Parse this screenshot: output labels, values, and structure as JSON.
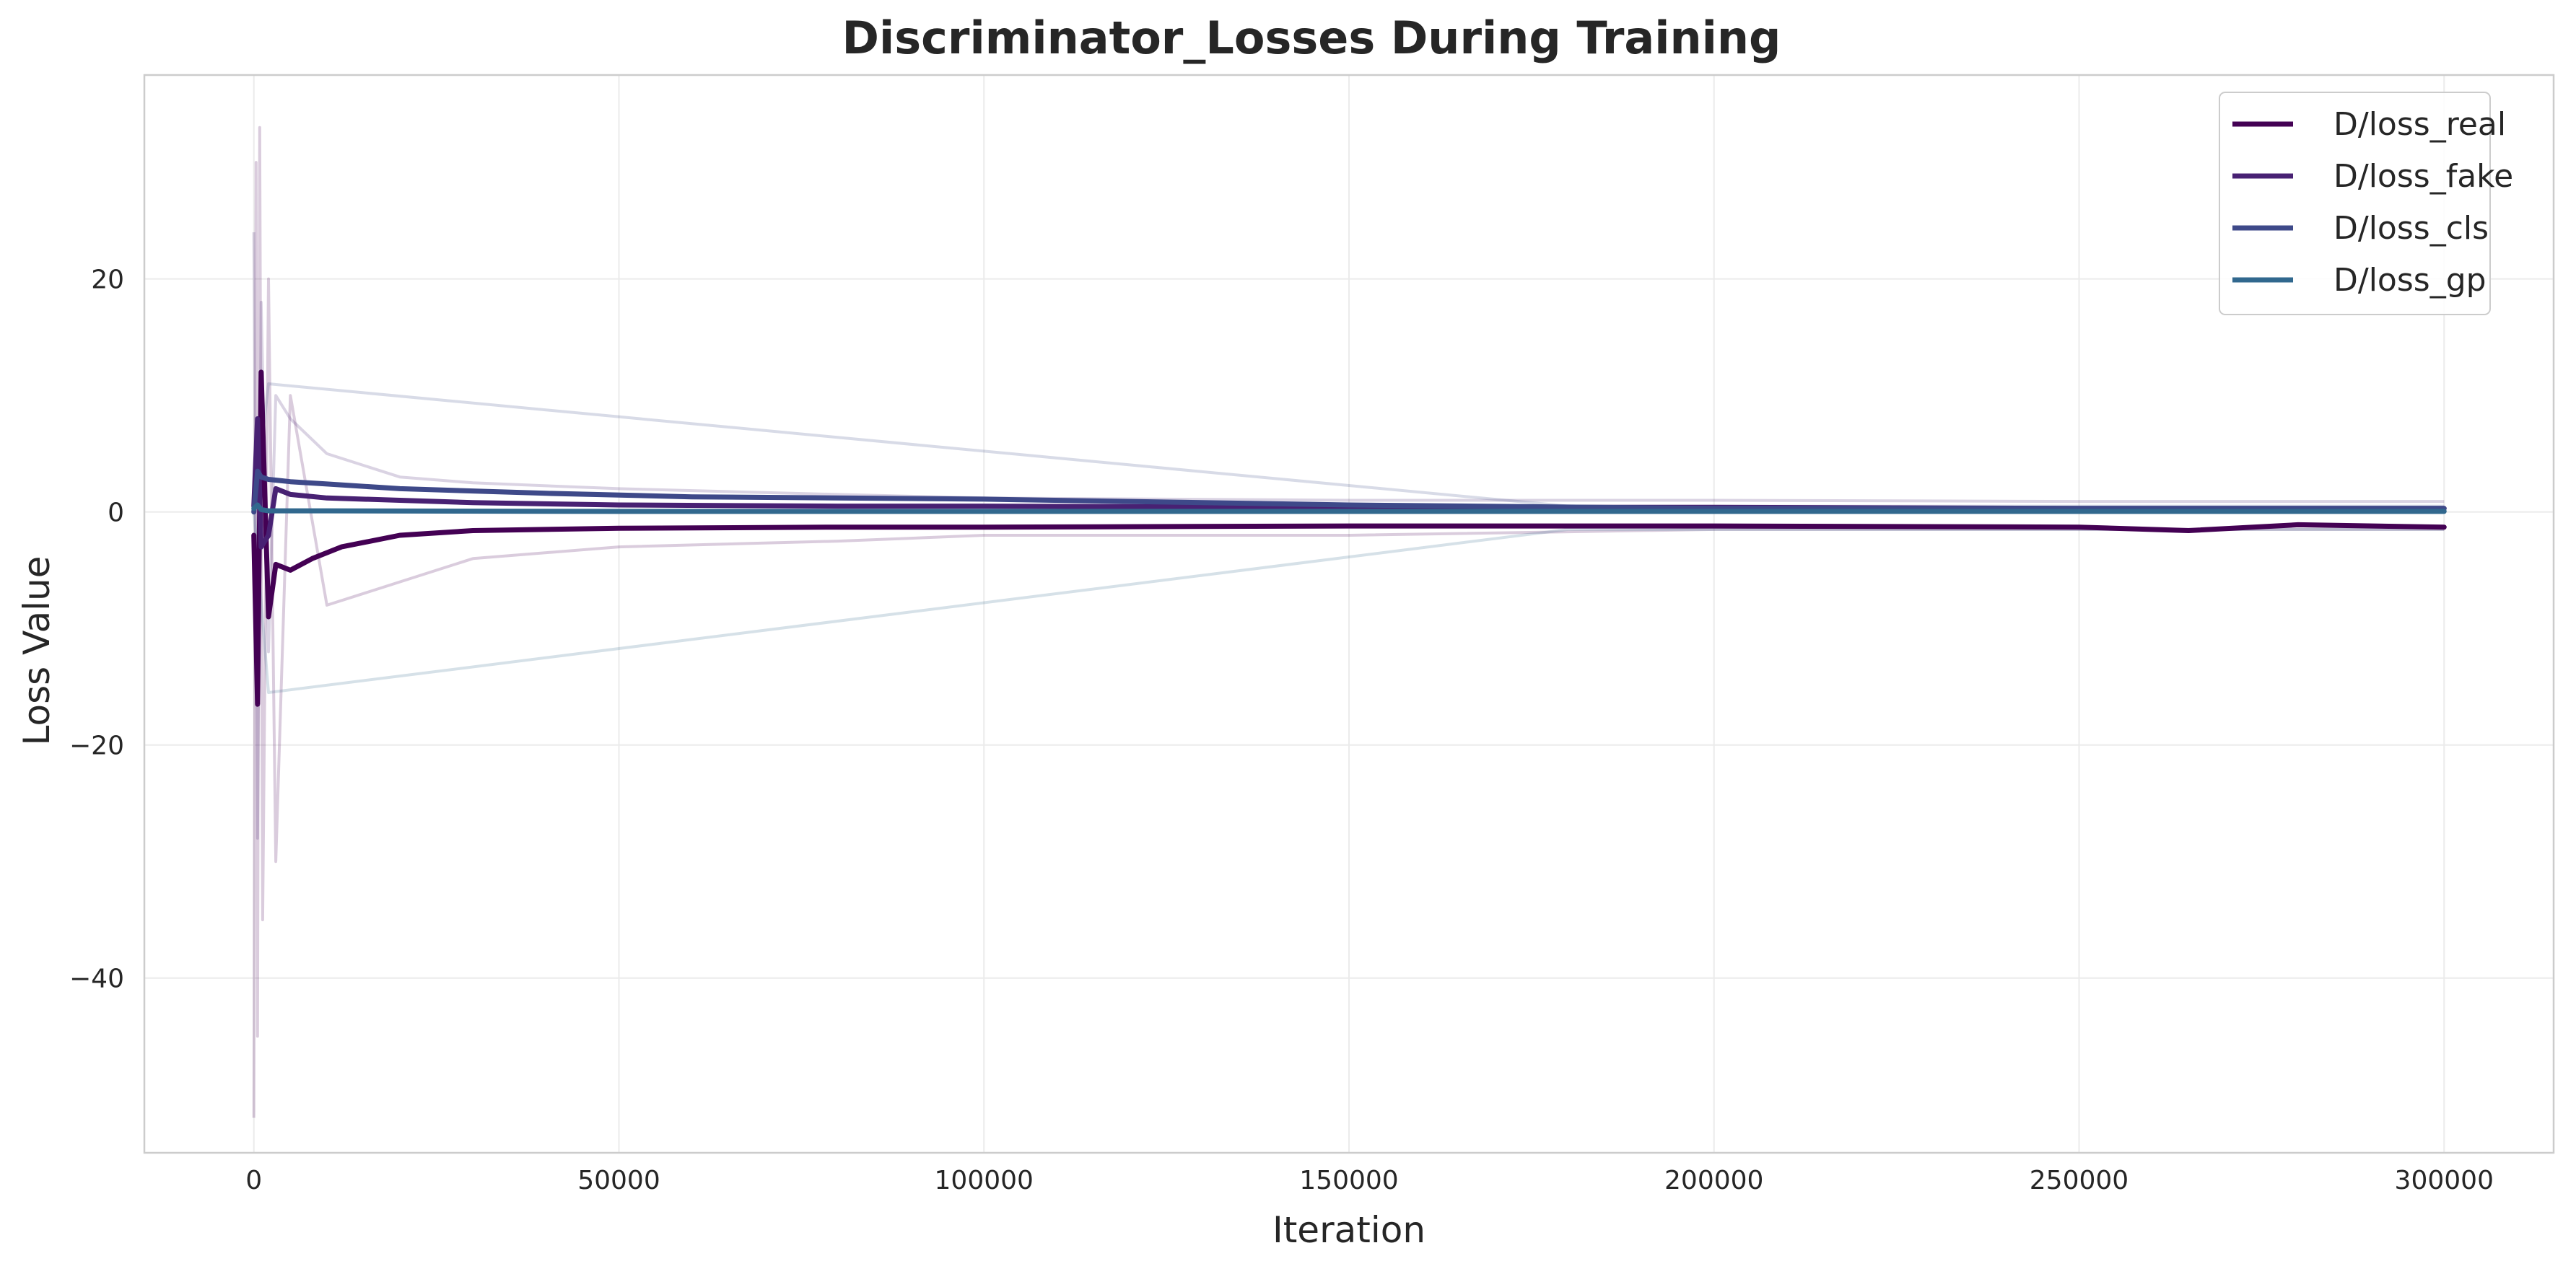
{
  "chart_data": {
    "type": "line",
    "title": "Discriminator_Losses During Training",
    "xlabel": "Iteration",
    "ylabel": "Loss Value",
    "xlim": [
      -15000,
      315000
    ],
    "ylim": [
      -55,
      37.5
    ],
    "xticks": [
      0,
      50000,
      100000,
      150000,
      200000,
      250000,
      300000
    ],
    "xtick_labels": [
      "0",
      "50000",
      "100000",
      "150000",
      "200000",
      "250000",
      "300000"
    ],
    "yticks": [
      -40,
      -20,
      0,
      20
    ],
    "ytick_labels": [
      "−40",
      "−20",
      "0",
      "20"
    ],
    "grid": true,
    "legend_position": "top-right",
    "series": [
      {
        "name": "D/loss_real",
        "color": "#440154",
        "x": [
          0,
          500,
          1000,
          2000,
          3000,
          5000,
          8000,
          12000,
          20000,
          30000,
          50000,
          80000,
          100000,
          150000,
          200000,
          250000,
          265000,
          280000,
          300000
        ],
        "values": [
          -2.0,
          -16.5,
          12.0,
          -9.0,
          -4.5,
          -5.0,
          -4.0,
          -3.0,
          -2.0,
          -1.6,
          -1.4,
          -1.3,
          -1.3,
          -1.2,
          -1.2,
          -1.3,
          -1.6,
          -1.1,
          -1.3
        ],
        "raw": {
          "x": [
            0,
            300,
            500,
            800,
            1200,
            2000,
            3000,
            5000,
            10000,
            20000,
            30000,
            50000,
            80000,
            100000,
            150000,
            200000,
            250000,
            300000
          ],
          "values": [
            -52,
            30,
            -45,
            33,
            -35,
            20,
            -30,
            10,
            -8,
            -6,
            -4,
            -3,
            -2.5,
            -2,
            -2,
            -1.5,
            -1.5,
            -1.5
          ]
        }
      },
      {
        "name": "D/loss_fake",
        "color": "#482173",
        "x": [
          0,
          500,
          1000,
          2000,
          3000,
          5000,
          10000,
          20000,
          30000,
          50000,
          80000,
          100000,
          150000,
          200000,
          250000,
          300000
        ],
        "values": [
          0.5,
          8.0,
          -3.0,
          -2.0,
          2.0,
          1.5,
          1.2,
          1.0,
          0.8,
          0.6,
          0.5,
          0.5,
          0.4,
          0.4,
          0.3,
          0.3
        ],
        "raw": {
          "x": [
            0,
            500,
            1000,
            2000,
            3000,
            5000,
            10000,
            20000,
            30000,
            50000,
            80000,
            100000,
            150000,
            200000,
            250000,
            300000
          ],
          "values": [
            24,
            -28,
            18,
            -12,
            10,
            8,
            5,
            3,
            2.5,
            2,
            1.5,
            1.2,
            1,
            1,
            0.9,
            0.9
          ]
        }
      },
      {
        "name": "D/loss_cls",
        "color": "#3e4989",
        "x": [
          0,
          500,
          1000,
          2000,
          5000,
          10000,
          20000,
          40000,
          60000,
          100000,
          150000,
          200000,
          250000,
          300000
        ],
        "values": [
          0.0,
          3.5,
          3.0,
          2.8,
          2.6,
          2.4,
          2.0,
          1.6,
          1.3,
          1.1,
          0.6,
          0.3,
          0.3,
          0.3
        ],
        "raw": {
          "x": [
            0,
            2000,
            180000,
            300000
          ],
          "values": [
            0,
            11,
            0.5,
            0.5
          ]
        }
      },
      {
        "name": "D/loss_gp",
        "color": "#31688e",
        "x": [
          0,
          500,
          1000,
          2000,
          5000,
          10000,
          50000,
          100000,
          150000,
          200000,
          250000,
          300000
        ],
        "values": [
          0.3,
          0.6,
          0.2,
          0.1,
          0.1,
          0.1,
          0.05,
          0.05,
          0.05,
          0.05,
          0.05,
          0.05
        ],
        "raw": {
          "x": [
            0,
            2000,
            180000,
            300000
          ],
          "values": [
            0,
            -15.5,
            -1.5,
            -1.5
          ]
        }
      }
    ]
  }
}
